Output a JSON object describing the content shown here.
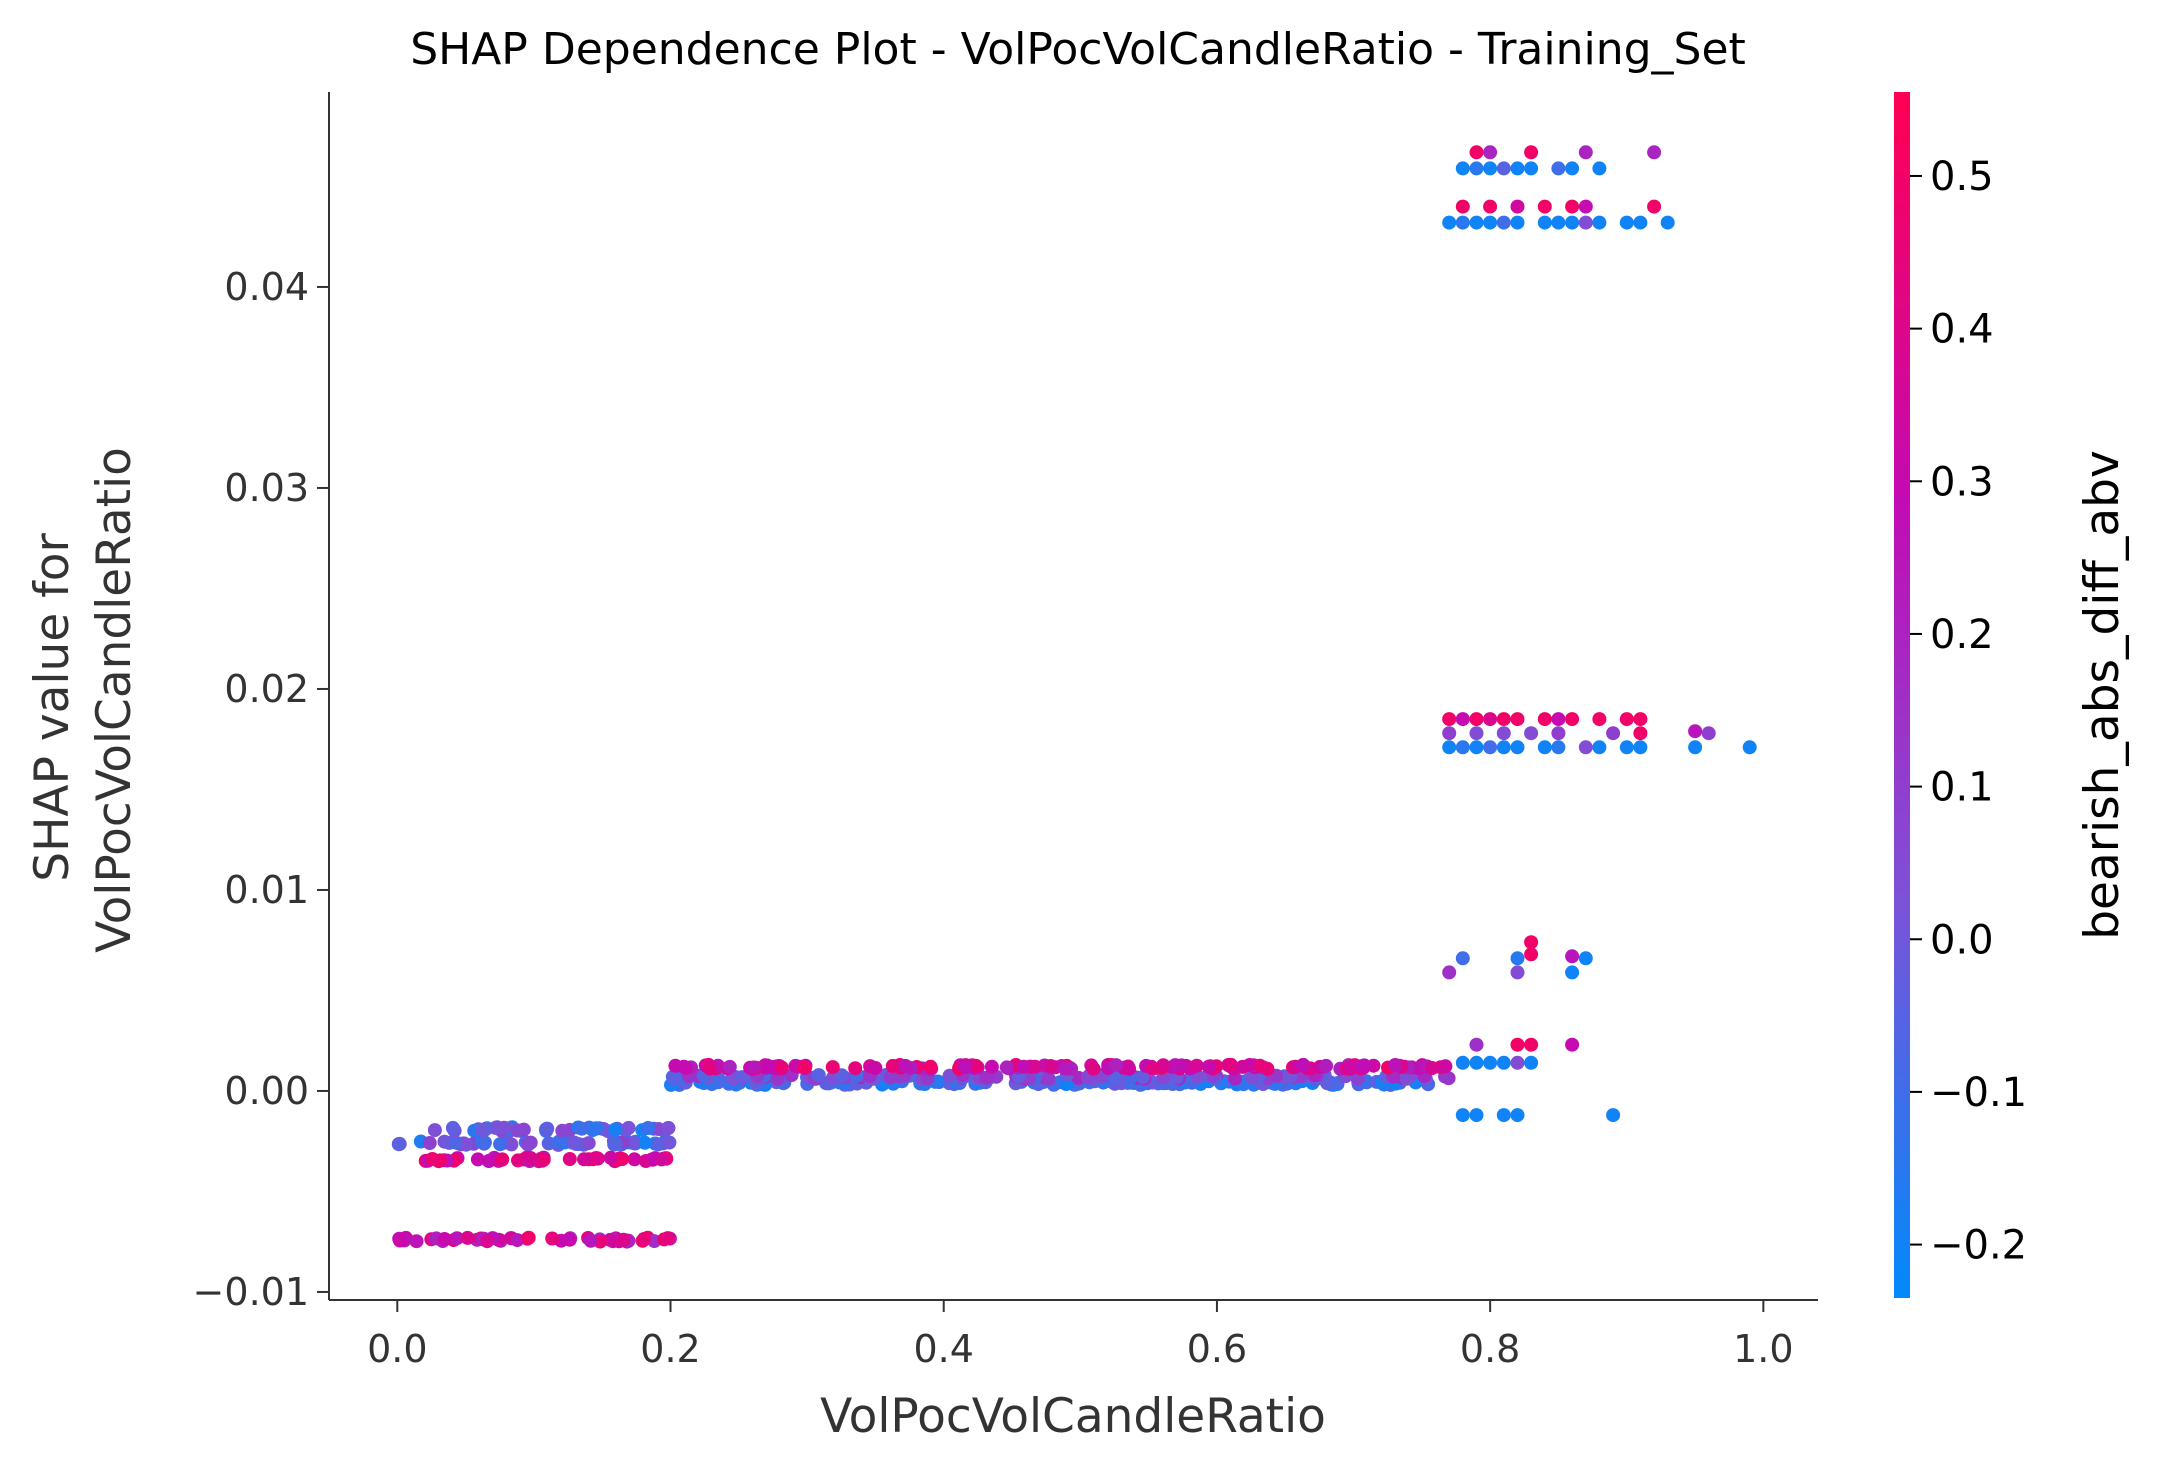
{
  "chart_data": {
    "type": "scatter",
    "title": "SHAP Dependence Plot - VolPocVolCandleRatio - Training_Set",
    "xlabel": "VolPocVolCandleRatio",
    "ylabel": "SHAP value for\nVolPocVolCandleRatio",
    "xlim": [
      -0.05,
      1.04
    ],
    "ylim": [
      -0.0104,
      0.0497
    ],
    "xticks": [
      0.0,
      0.2,
      0.4,
      0.6,
      0.8,
      1.0
    ],
    "yticks": [
      -0.01,
      0.0,
      0.01,
      0.02,
      0.03,
      0.04
    ],
    "xtick_labels": [
      "0.0",
      "0.2",
      "0.4",
      "0.6",
      "0.8",
      "1.0"
    ],
    "ytick_labels": [
      "−0.01",
      "0.00",
      "0.01",
      "0.02",
      "0.03",
      "0.04"
    ],
    "grid": false,
    "colorbar": {
      "label": "bearish_abs_diff_abv",
      "range": [
        -0.235,
        0.555
      ],
      "ticks": [
        0.5,
        0.4,
        0.3,
        0.2,
        0.1,
        0.0,
        -0.1,
        -0.2
      ],
      "tick_labels": [
        "0.5",
        "0.4",
        "0.3",
        "0.2",
        "0.1",
        "0.0",
        "−0.1",
        "−0.2"
      ],
      "colormap": [
        "#008afb",
        "#7c52d8",
        "#c30bb4",
        "#ff0052"
      ]
    },
    "clusters": [
      {
        "x": [
          0.0,
          0.2
        ],
        "y": -0.0026,
        "c": [
          -0.2,
          0.1
        ]
      },
      {
        "x": [
          0.02,
          0.2
        ],
        "y": -0.0019,
        "c": [
          -0.2,
          0.1
        ]
      },
      {
        "x": [
          0.02,
          0.2
        ],
        "y": -0.0034,
        "c": [
          0.25,
          0.5
        ]
      },
      {
        "x": [
          0.0,
          0.2
        ],
        "y": -0.0074,
        "c": [
          0.15,
          0.5
        ]
      },
      {
        "x": [
          0.2,
          0.77
        ],
        "y": 0.0004,
        "c": [
          -0.2,
          0.0
        ]
      },
      {
        "x": [
          0.2,
          0.77
        ],
        "y": 0.0007,
        "c": [
          -0.1,
          0.2
        ]
      },
      {
        "x": [
          0.2,
          0.77
        ],
        "y": 0.0012,
        "c": [
          0.2,
          0.5
        ]
      }
    ],
    "points": [
      {
        "x": 0.78,
        "y": 0.0459,
        "c": -0.2
      },
      {
        "x": 0.79,
        "y": 0.0459,
        "c": -0.15
      },
      {
        "x": 0.8,
        "y": 0.0459,
        "c": -0.2
      },
      {
        "x": 0.81,
        "y": 0.0459,
        "c": -0.05
      },
      {
        "x": 0.82,
        "y": 0.0459,
        "c": -0.2
      },
      {
        "x": 0.83,
        "y": 0.0459,
        "c": -0.2
      },
      {
        "x": 0.85,
        "y": 0.0459,
        "c": -0.1
      },
      {
        "x": 0.86,
        "y": 0.0459,
        "c": -0.2
      },
      {
        "x": 0.88,
        "y": 0.0459,
        "c": -0.2
      },
      {
        "x": 0.79,
        "y": 0.0467,
        "c": 0.5
      },
      {
        "x": 0.8,
        "y": 0.0467,
        "c": 0.2
      },
      {
        "x": 0.83,
        "y": 0.0467,
        "c": 0.5
      },
      {
        "x": 0.87,
        "y": 0.0467,
        "c": 0.2
      },
      {
        "x": 0.92,
        "y": 0.0467,
        "c": 0.2
      },
      {
        "x": 0.78,
        "y": 0.044,
        "c": 0.5
      },
      {
        "x": 0.8,
        "y": 0.044,
        "c": 0.5
      },
      {
        "x": 0.82,
        "y": 0.044,
        "c": 0.35
      },
      {
        "x": 0.84,
        "y": 0.044,
        "c": 0.5
      },
      {
        "x": 0.86,
        "y": 0.044,
        "c": 0.5
      },
      {
        "x": 0.87,
        "y": 0.044,
        "c": 0.3
      },
      {
        "x": 0.92,
        "y": 0.044,
        "c": 0.5
      },
      {
        "x": 0.77,
        "y": 0.0432,
        "c": -0.2
      },
      {
        "x": 0.78,
        "y": 0.0432,
        "c": -0.15
      },
      {
        "x": 0.79,
        "y": 0.0432,
        "c": -0.2
      },
      {
        "x": 0.8,
        "y": 0.0432,
        "c": -0.2
      },
      {
        "x": 0.81,
        "y": 0.0432,
        "c": -0.1
      },
      {
        "x": 0.82,
        "y": 0.0432,
        "c": -0.2
      },
      {
        "x": 0.84,
        "y": 0.0432,
        "c": -0.2
      },
      {
        "x": 0.85,
        "y": 0.0432,
        "c": -0.2
      },
      {
        "x": 0.86,
        "y": 0.0432,
        "c": -0.2
      },
      {
        "x": 0.87,
        "y": 0.0432,
        "c": 0.05
      },
      {
        "x": 0.88,
        "y": 0.0432,
        "c": -0.2
      },
      {
        "x": 0.9,
        "y": 0.0432,
        "c": -0.2
      },
      {
        "x": 0.91,
        "y": 0.0432,
        "c": -0.2
      },
      {
        "x": 0.93,
        "y": 0.0432,
        "c": -0.2
      },
      {
        "x": 0.77,
        "y": 0.0185,
        "c": 0.5
      },
      {
        "x": 0.78,
        "y": 0.0185,
        "c": 0.3
      },
      {
        "x": 0.79,
        "y": 0.0185,
        "c": 0.5
      },
      {
        "x": 0.8,
        "y": 0.0185,
        "c": 0.4
      },
      {
        "x": 0.81,
        "y": 0.0185,
        "c": 0.5
      },
      {
        "x": 0.82,
        "y": 0.0185,
        "c": 0.5
      },
      {
        "x": 0.84,
        "y": 0.0185,
        "c": 0.5
      },
      {
        "x": 0.85,
        "y": 0.0185,
        "c": 0.3
      },
      {
        "x": 0.86,
        "y": 0.0185,
        "c": 0.5
      },
      {
        "x": 0.88,
        "y": 0.0185,
        "c": 0.5
      },
      {
        "x": 0.9,
        "y": 0.0185,
        "c": 0.5
      },
      {
        "x": 0.91,
        "y": 0.0185,
        "c": 0.5
      },
      {
        "x": 0.77,
        "y": 0.0178,
        "c": 0.1
      },
      {
        "x": 0.79,
        "y": 0.0178,
        "c": 0.05
      },
      {
        "x": 0.81,
        "y": 0.0178,
        "c": 0.05
      },
      {
        "x": 0.83,
        "y": 0.0178,
        "c": 0.05
      },
      {
        "x": 0.85,
        "y": 0.0178,
        "c": 0.1
      },
      {
        "x": 0.89,
        "y": 0.0178,
        "c": 0.1
      },
      {
        "x": 0.91,
        "y": 0.0178,
        "c": 0.5
      },
      {
        "x": 0.95,
        "y": 0.0179,
        "c": 0.25
      },
      {
        "x": 0.96,
        "y": 0.0178,
        "c": 0.1
      },
      {
        "x": 0.77,
        "y": 0.0171,
        "c": -0.2
      },
      {
        "x": 0.78,
        "y": 0.0171,
        "c": -0.15
      },
      {
        "x": 0.79,
        "y": 0.0171,
        "c": -0.2
      },
      {
        "x": 0.8,
        "y": 0.0171,
        "c": -0.1
      },
      {
        "x": 0.81,
        "y": 0.0171,
        "c": -0.2
      },
      {
        "x": 0.82,
        "y": 0.0171,
        "c": -0.2
      },
      {
        "x": 0.84,
        "y": 0.0171,
        "c": -0.2
      },
      {
        "x": 0.85,
        "y": 0.0171,
        "c": -0.15
      },
      {
        "x": 0.87,
        "y": 0.0171,
        "c": 0.05
      },
      {
        "x": 0.88,
        "y": 0.0171,
        "c": -0.2
      },
      {
        "x": 0.9,
        "y": 0.0171,
        "c": -0.2
      },
      {
        "x": 0.91,
        "y": 0.0171,
        "c": -0.2
      },
      {
        "x": 0.95,
        "y": 0.0171,
        "c": -0.2
      },
      {
        "x": 0.99,
        "y": 0.0171,
        "c": -0.2
      },
      {
        "x": 0.83,
        "y": 0.0074,
        "c": 0.5
      },
      {
        "x": 0.83,
        "y": 0.0068,
        "c": 0.5
      },
      {
        "x": 0.78,
        "y": 0.0066,
        "c": -0.1
      },
      {
        "x": 0.82,
        "y": 0.0066,
        "c": -0.15
      },
      {
        "x": 0.86,
        "y": 0.0067,
        "c": 0.25
      },
      {
        "x": 0.87,
        "y": 0.0066,
        "c": -0.2
      },
      {
        "x": 0.77,
        "y": 0.0059,
        "c": 0.15
      },
      {
        "x": 0.82,
        "y": 0.0059,
        "c": 0.05
      },
      {
        "x": 0.86,
        "y": 0.0059,
        "c": -0.2
      },
      {
        "x": 0.79,
        "y": 0.0023,
        "c": 0.15
      },
      {
        "x": 0.82,
        "y": 0.0023,
        "c": 0.5
      },
      {
        "x": 0.83,
        "y": 0.0023,
        "c": 0.5
      },
      {
        "x": 0.86,
        "y": 0.0023,
        "c": 0.3
      },
      {
        "x": 0.78,
        "y": 0.0014,
        "c": -0.2
      },
      {
        "x": 0.79,
        "y": 0.0014,
        "c": -0.2
      },
      {
        "x": 0.8,
        "y": 0.0014,
        "c": -0.2
      },
      {
        "x": 0.81,
        "y": 0.0014,
        "c": -0.2
      },
      {
        "x": 0.82,
        "y": 0.0014,
        "c": 0.05
      },
      {
        "x": 0.83,
        "y": 0.0014,
        "c": -0.2
      },
      {
        "x": 0.78,
        "y": -0.0012,
        "c": -0.2
      },
      {
        "x": 0.79,
        "y": -0.0012,
        "c": -0.2
      },
      {
        "x": 0.81,
        "y": -0.0012,
        "c": -0.2
      },
      {
        "x": 0.82,
        "y": -0.0012,
        "c": -0.2
      },
      {
        "x": 0.89,
        "y": -0.0012,
        "c": -0.2
      }
    ]
  }
}
